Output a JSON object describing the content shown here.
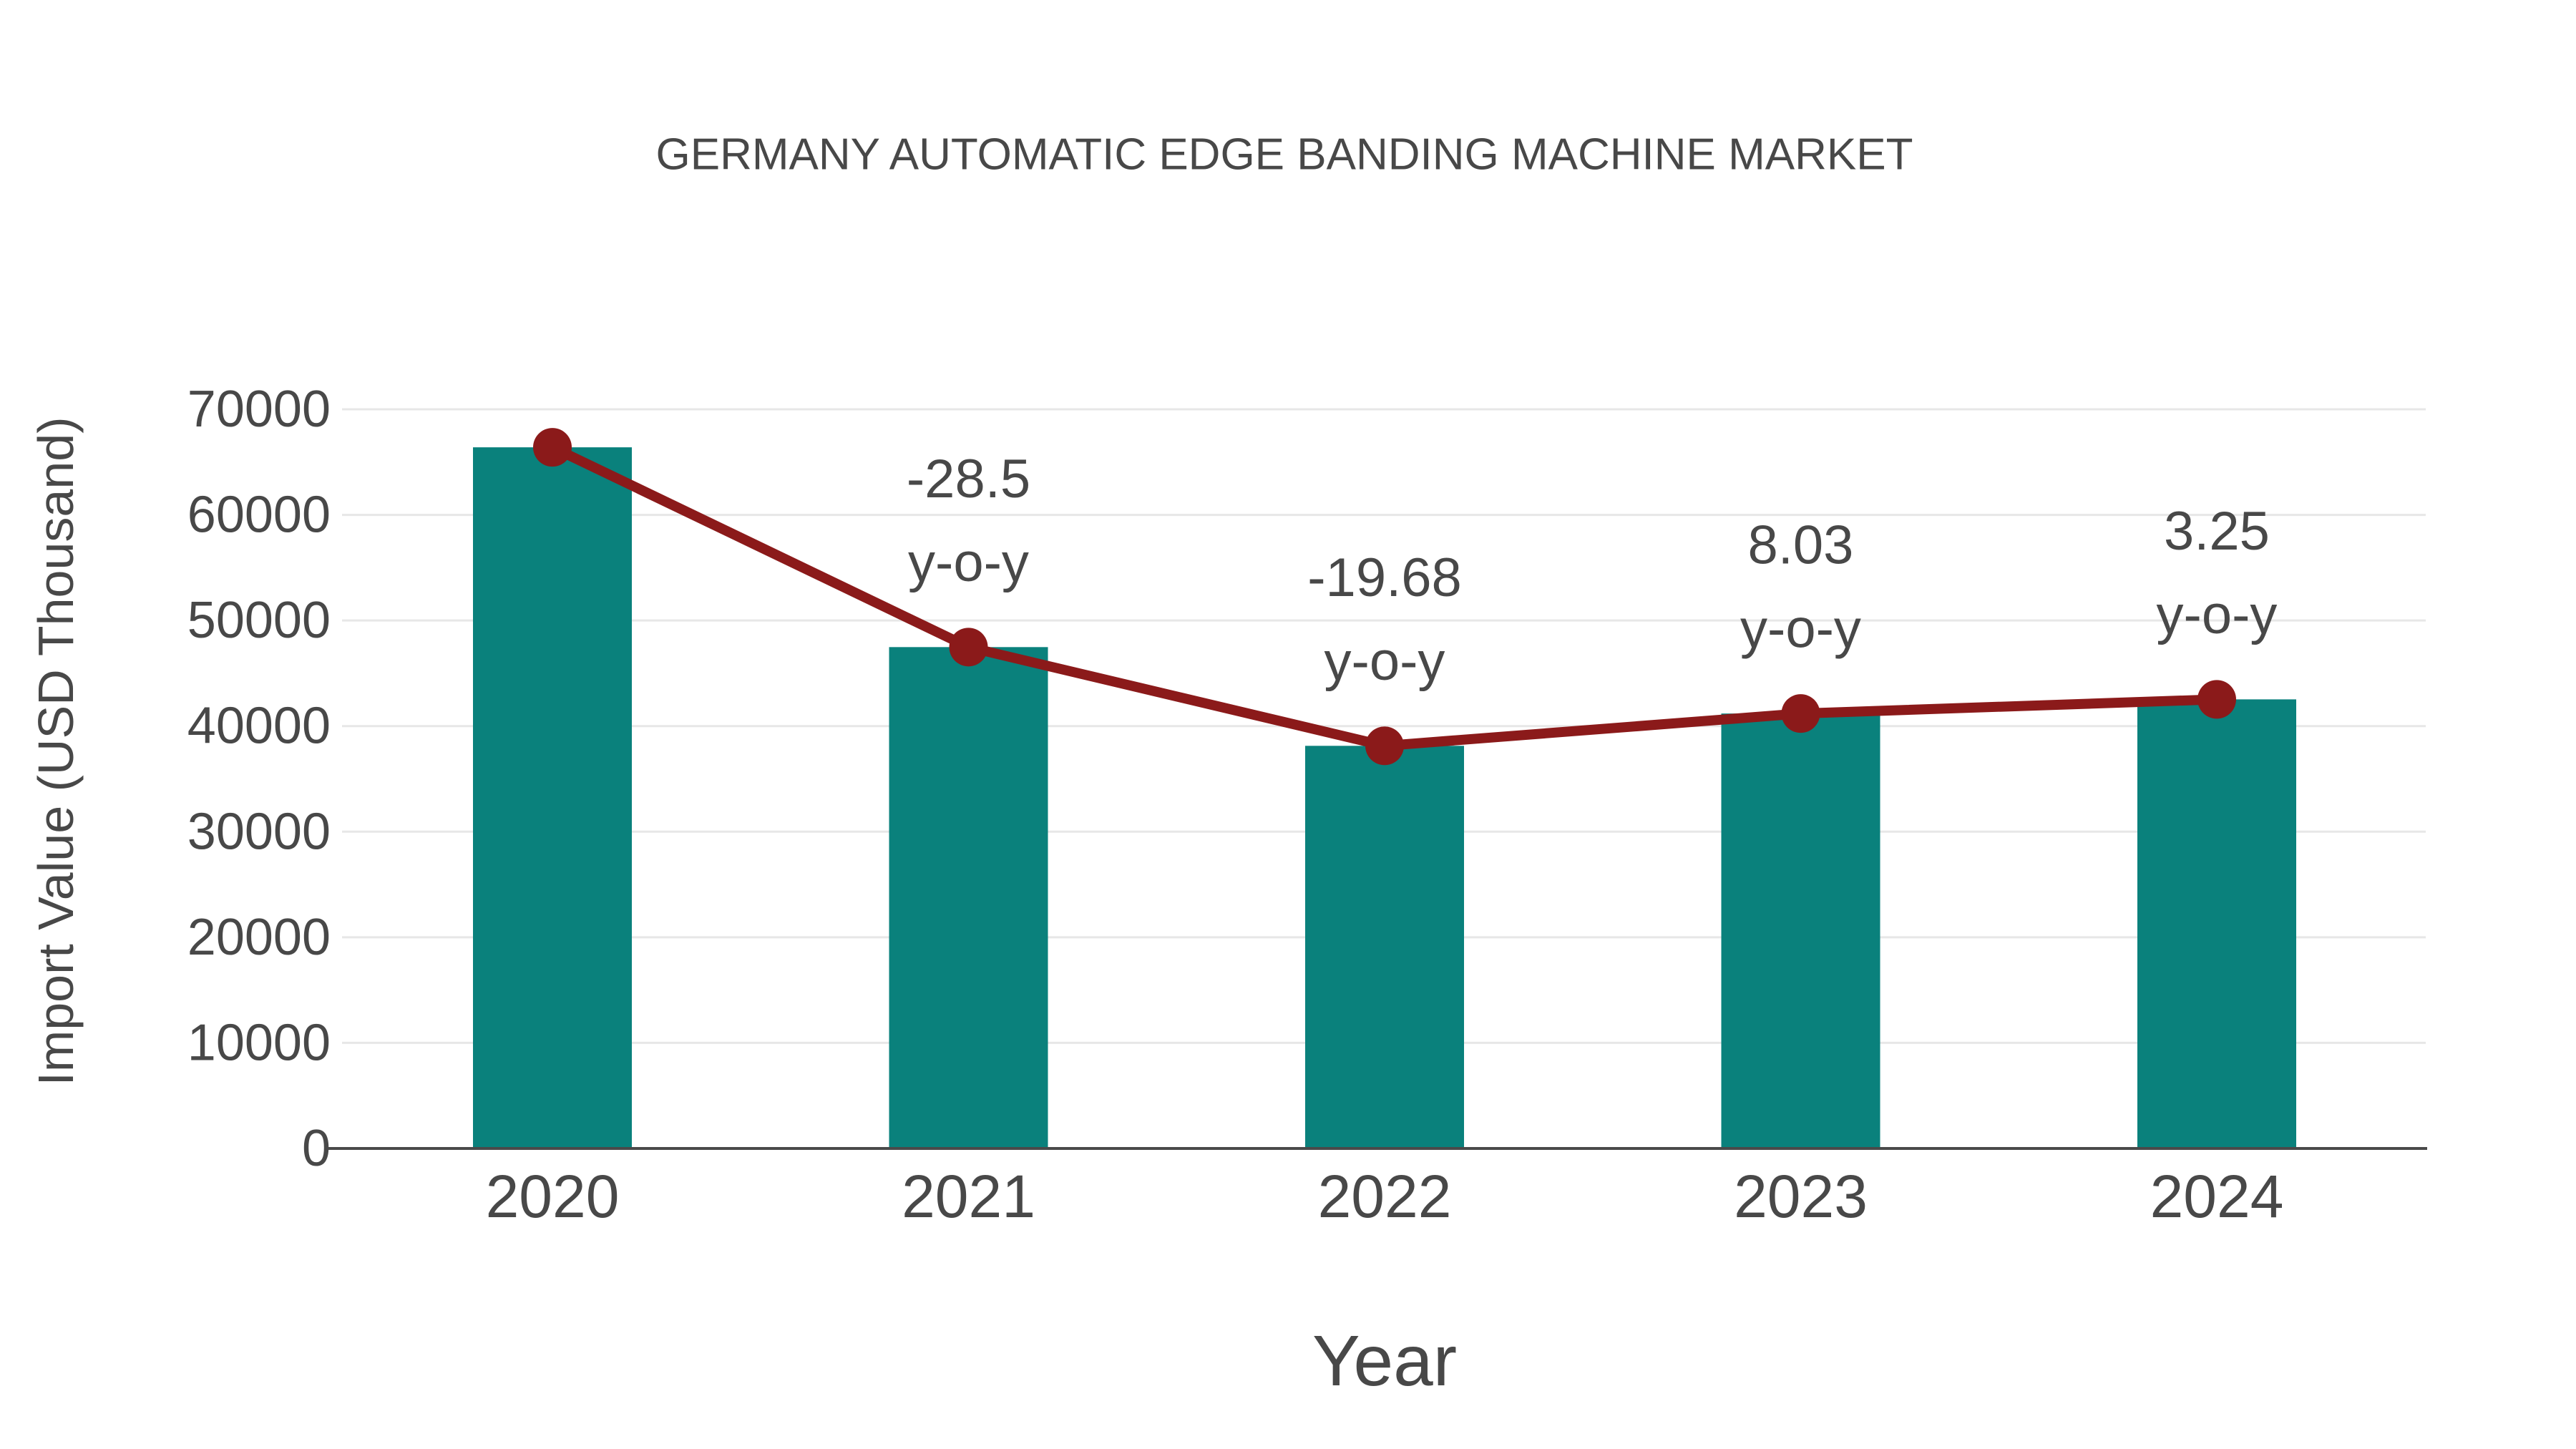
{
  "title": "GERMANY AUTOMATIC EDGE BANDING MACHINE MARKET",
  "y_axis": {
    "label": "Import Value (USD Thousand)",
    "ticks": [
      0,
      10000,
      20000,
      30000,
      40000,
      50000,
      60000,
      70000
    ]
  },
  "x_axis": {
    "label": "Year",
    "categories": [
      "2020",
      "2021",
      "2022",
      "2023",
      "2024"
    ]
  },
  "chart_data": {
    "type": "bar",
    "categories": [
      "2020",
      "2021",
      "2022",
      "2023",
      "2024"
    ],
    "series": [
      {
        "name": "Import Value (USD Thousand)",
        "type": "bar",
        "values": [
          66400,
          47480,
          38130,
          41190,
          42530
        ]
      },
      {
        "name": "y-o-y trend",
        "type": "line",
        "values": [
          66400,
          47480,
          38130,
          41190,
          42530
        ]
      }
    ],
    "annotations": [
      {
        "category": "2021",
        "value": "-28.5",
        "suffix": "y-o-y"
      },
      {
        "category": "2022",
        "value": "-19.68",
        "suffix": "y-o-y"
      },
      {
        "category": "2023",
        "value": "8.03",
        "suffix": "y-o-y"
      },
      {
        "category": "2024",
        "value": "3.25",
        "suffix": "y-o-y"
      }
    ],
    "title": "GERMANY AUTOMATIC EDGE BANDING MACHINE MARKET",
    "xlabel": "Year",
    "ylabel": "Import Value (USD Thousand)",
    "ylim": [
      0,
      70000
    ],
    "grid": true,
    "legend_position": "none"
  },
  "colors": {
    "bar": "#0A817C",
    "line": "#8B1A1A",
    "marker": "#8B1A1A",
    "text": "#484848",
    "grid": "#e7e7e7",
    "axis": "#4a4a4a",
    "background": "#ffffff"
  }
}
